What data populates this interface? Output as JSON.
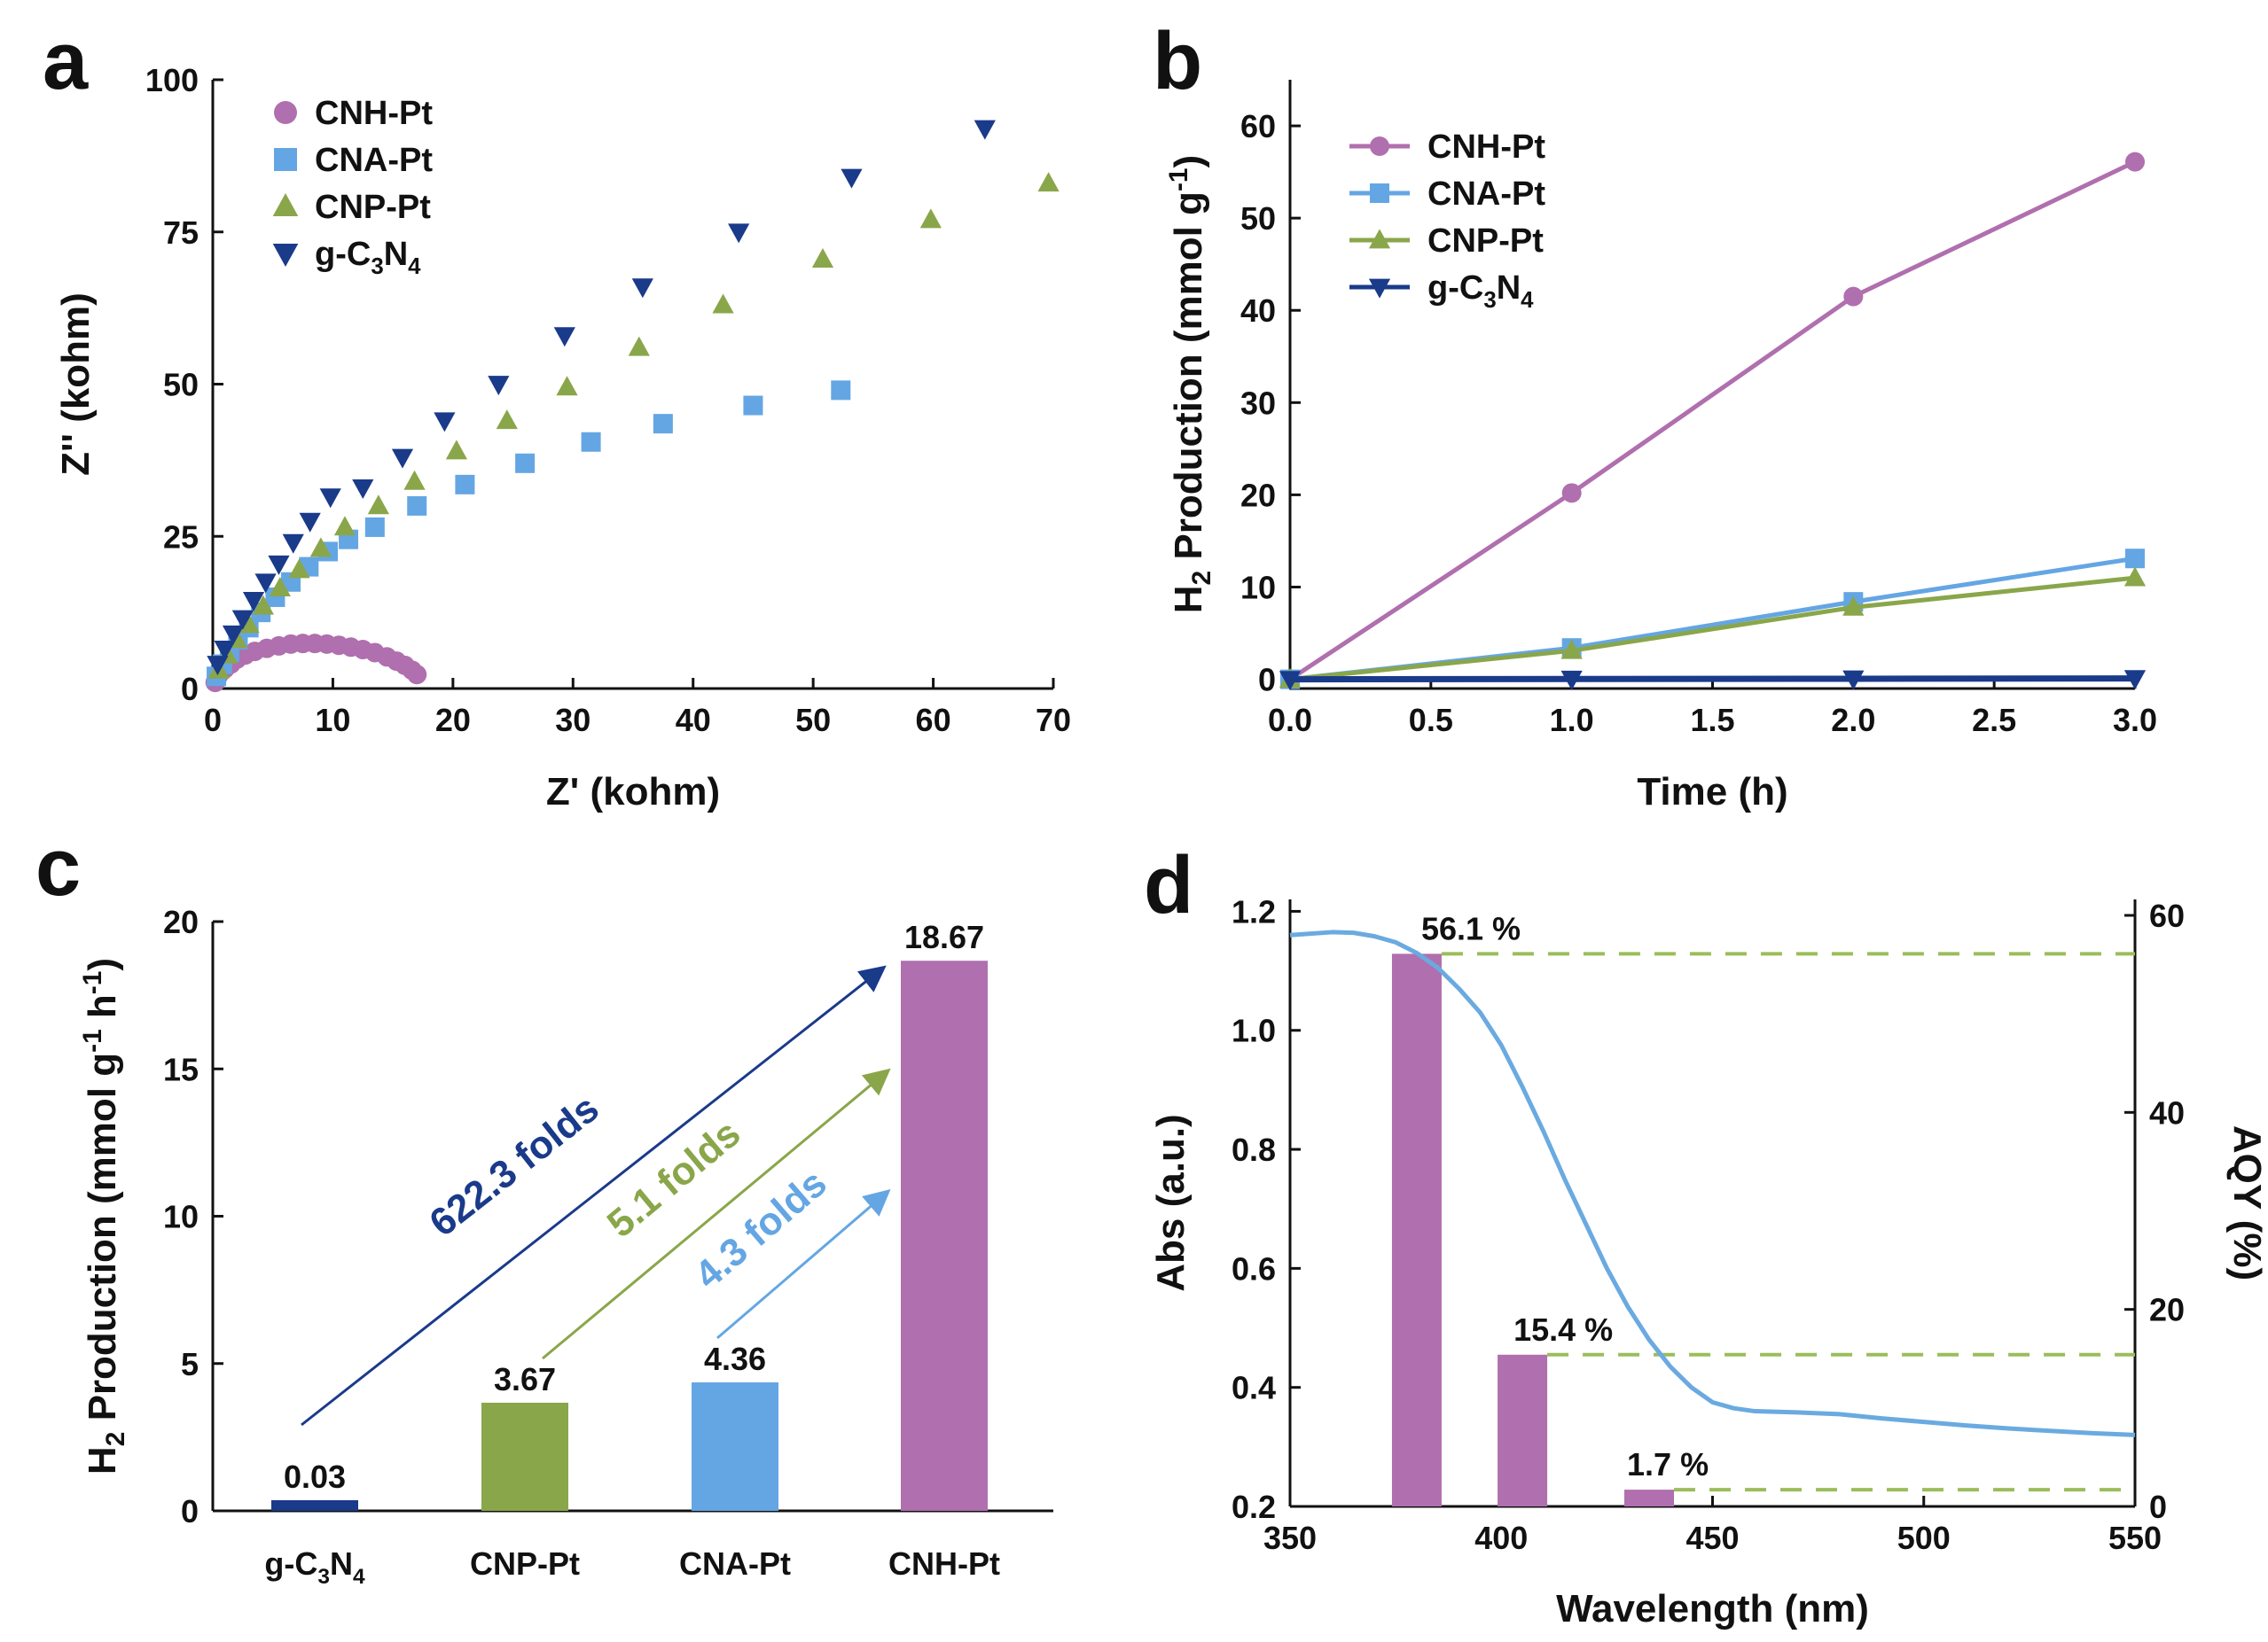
{
  "figure": {
    "panels": [
      "a",
      "b",
      "c",
      "d"
    ]
  },
  "colors": {
    "cnh": "#b06fae",
    "cna": "#64a6e3",
    "cnp": "#8aa64a",
    "gcn": "#1a3a8a",
    "curve": "#6aaae0",
    "dash": "#9bbd5a"
  },
  "chart_data": [
    {
      "id": "a",
      "type": "scatter",
      "xlabel": "Z' (kohm)",
      "ylabel": "Z'' (kohm)",
      "xlim": [
        0,
        70
      ],
      "ylim": [
        0,
        100
      ],
      "xticks": [
        0,
        10,
        20,
        30,
        40,
        50,
        60,
        70
      ],
      "yticks": [
        0,
        25,
        50,
        75,
        100
      ],
      "legend": [
        "CNH-Pt",
        "CNA-Pt",
        "CNP-Pt",
        "g-C3N4"
      ],
      "legend_position": "top-left",
      "series": [
        {
          "name": "CNH-Pt",
          "marker": "circle",
          "x": [
            0.2,
            0.5,
            1,
            1.5,
            2,
            2.7,
            3.5,
            4.5,
            5.5,
            6.5,
            7.5,
            8.5,
            9.5,
            10.5,
            11.5,
            12.5,
            13.5,
            14.5,
            15.3,
            16,
            16.6,
            17
          ],
          "y": [
            1,
            2.2,
            3.2,
            4,
            4.8,
            5.5,
            6.1,
            6.6,
            7,
            7.3,
            7.4,
            7.4,
            7.3,
            7.1,
            6.8,
            6.4,
            5.9,
            5.2,
            4.5,
            3.8,
            3,
            2.3
          ]
        },
        {
          "name": "CNA-Pt",
          "marker": "square",
          "x": [
            0.3,
            0.8,
            1.4,
            2.1,
            3,
            4,
            5.2,
            6.5,
            8,
            9.6,
            11.3,
            13.5,
            17,
            21,
            26,
            31.5,
            37.5,
            45,
            52.3
          ],
          "y": [
            2,
            4,
            6,
            8,
            10,
            12.5,
            15,
            17.5,
            20,
            22.5,
            24.5,
            26.5,
            30,
            33.5,
            37,
            40.5,
            43.5,
            46.5,
            49
          ]
        },
        {
          "name": "CNP-Pt",
          "marker": "triangle-up",
          "x": [
            0.5,
            1.2,
            2,
            3,
            4.2,
            5.6,
            7.2,
            9,
            11,
            13.8,
            16.8,
            20.3,
            24.5,
            29.5,
            35.5,
            42.5,
            50.8,
            59.8,
            69.6
          ],
          "y": [
            3,
            5.5,
            8,
            10.5,
            13.5,
            16.5,
            19.5,
            23,
            26.5,
            30,
            34,
            39,
            44,
            49.5,
            56,
            63,
            70.5,
            77,
            83
          ]
        },
        {
          "name": "g-C3N4",
          "marker": "triangle-down",
          "x": [
            0.4,
            1,
            1.7,
            2.5,
            3.4,
            4.4,
            5.5,
            6.7,
            8.1,
            9.8,
            12.5,
            15.8,
            19.3,
            23.8,
            29.3,
            35.8,
            43.8,
            53.2,
            64.3
          ],
          "y": [
            4,
            6.5,
            9,
            11.5,
            14.5,
            17.5,
            20.5,
            24,
            27.5,
            31.5,
            33,
            38,
            44,
            50,
            58,
            66,
            75,
            84,
            92
          ]
        }
      ]
    },
    {
      "id": "b",
      "type": "line",
      "xlabel": "Time (h)",
      "ylabel": "H2 Production (mmol g-1)",
      "xlim": [
        0,
        3
      ],
      "ylim": [
        -1,
        65
      ],
      "xticks": [
        "0.0",
        "0.5",
        "1.0",
        "1.5",
        "2.0",
        "2.5",
        "3.0"
      ],
      "yticks": [
        0,
        10,
        20,
        30,
        40,
        50,
        60
      ],
      "legend": [
        "CNH-Pt",
        "CNA-Pt",
        "CNP-Pt",
        "g-C3N4"
      ],
      "legend_position": "top-left",
      "x": [
        0,
        1,
        2,
        3
      ],
      "series": [
        {
          "name": "CNH-Pt",
          "marker": "circle",
          "values": [
            0,
            20.2,
            41.5,
            56.1
          ]
        },
        {
          "name": "CNA-Pt",
          "marker": "square",
          "values": [
            0,
            3.4,
            8.4,
            13.1
          ]
        },
        {
          "name": "CNP-Pt",
          "marker": "triangle-up",
          "values": [
            0,
            3.1,
            7.8,
            11.0
          ]
        },
        {
          "name": "g-C3N4",
          "marker": "triangle-down",
          "values": [
            0,
            0.03,
            0.06,
            0.09
          ]
        }
      ]
    },
    {
      "id": "c",
      "type": "bar",
      "ylabel": "H2 Production (mmol g-1 h-1)",
      "ylim": [
        0,
        20
      ],
      "yticks": [
        0,
        5,
        10,
        15,
        20
      ],
      "categories": [
        "g-C3N4",
        "CNP-Pt",
        "CNA-Pt",
        "CNH-Pt"
      ],
      "values": [
        0.03,
        3.67,
        4.36,
        18.67
      ],
      "labels": [
        "0.03",
        "3.67",
        "4.36",
        "18.67"
      ],
      "annotations": [
        {
          "text": "622.3 folds",
          "from": "g-C3N4",
          "to": "CNH-Pt"
        },
        {
          "text": "5.1 folds",
          "from": "CNP-Pt",
          "to": "CNH-Pt"
        },
        {
          "text": "4.3 folds",
          "from": "CNA-Pt",
          "to": "CNH-Pt"
        }
      ]
    },
    {
      "id": "d",
      "type": "bar",
      "xlabel": "Wavelength (nm)",
      "ylabel": "Abs (a.u.)",
      "y2label": "AQY (%)",
      "xlim": [
        350,
        550
      ],
      "ylim": [
        0.2,
        1.22
      ],
      "y2lim": [
        0,
        60
      ],
      "xticks": [
        350,
        400,
        450,
        500,
        550
      ],
      "yticks": [
        "0.2",
        "0.4",
        "0.6",
        "0.8",
        "1.0",
        "1.2"
      ],
      "y2ticks": [
        0,
        20,
        40,
        60
      ],
      "absorbance": {
        "x": [
          350,
          360,
          365,
          370,
          375,
          380,
          385,
          390,
          395,
          400,
          405,
          410,
          415,
          420,
          425,
          430,
          435,
          440,
          445,
          450,
          455,
          460,
          470,
          480,
          490,
          500,
          510,
          520,
          530,
          540,
          550
        ],
        "y": [
          1.16,
          1.165,
          1.164,
          1.158,
          1.148,
          1.13,
          1.105,
          1.07,
          1.03,
          0.975,
          0.905,
          0.83,
          0.75,
          0.675,
          0.6,
          0.535,
          0.48,
          0.435,
          0.4,
          0.375,
          0.365,
          0.36,
          0.358,
          0.355,
          0.348,
          0.342,
          0.336,
          0.331,
          0.327,
          0.323,
          0.32
        ]
      },
      "aqy_bars": [
        {
          "wavelength": 380,
          "value": 56.1,
          "label": "56.1 %"
        },
        {
          "wavelength": 405,
          "value": 15.4,
          "label": "15.4 %"
        },
        {
          "wavelength": 435,
          "value": 1.7,
          "label": "1.7 %"
        }
      ]
    }
  ]
}
